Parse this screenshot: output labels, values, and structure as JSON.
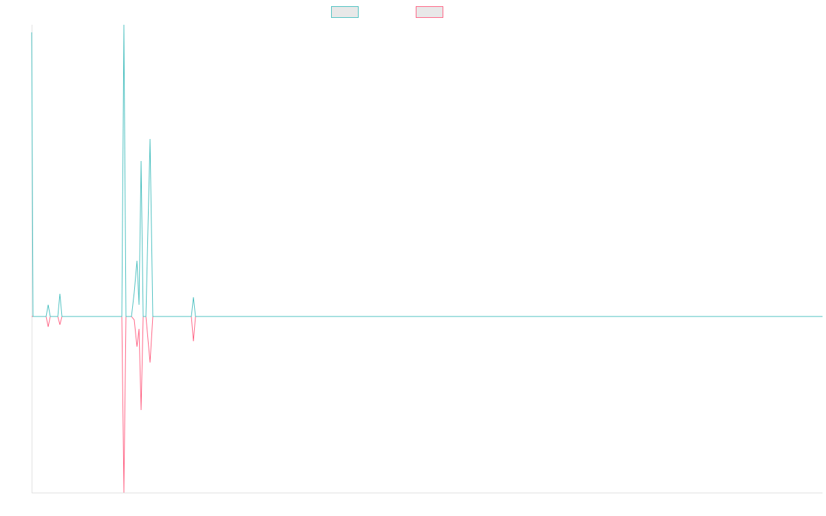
{
  "chart_data": {
    "type": "line",
    "x": [
      0,
      2,
      21,
      24,
      27,
      38,
      41,
      44,
      131,
      134,
      137,
      145,
      149,
      153,
      156,
      159,
      162,
      166,
      172,
      176,
      232,
      235,
      238,
      1149
    ],
    "xlim": [
      0,
      1149
    ],
    "ylim": [
      -256,
      424
    ],
    "series": [
      {
        "color": "#ff6384",
        "values": [
          0,
          0,
          0,
          -15,
          0,
          0,
          -12,
          0,
          0,
          -256,
          0,
          0,
          -5,
          -44,
          -18,
          -136,
          0,
          0,
          -67,
          0,
          0,
          -36,
          0,
          0
        ]
      },
      {
        "color": "#4bc0c0",
        "values": [
          413,
          0,
          0,
          17,
          0,
          0,
          33,
          0,
          0,
          424,
          0,
          0,
          35,
          81,
          17,
          226,
          0,
          0,
          258,
          0,
          0,
          28,
          0,
          0
        ]
      }
    ]
  }
}
